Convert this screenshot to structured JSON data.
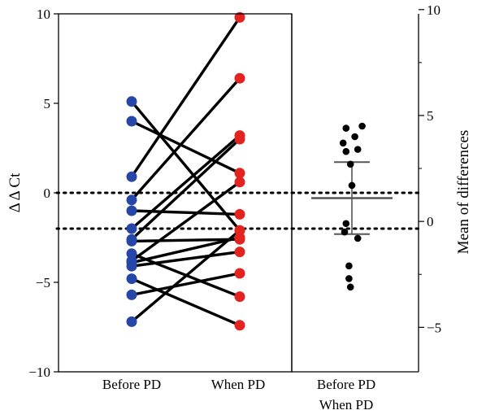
{
  "chart_data": [
    {
      "type": "line",
      "ylabel": "Δ Δ Ct",
      "ylim": [
        -10,
        10
      ],
      "yticks": [
        10,
        5,
        0,
        -5,
        -10
      ],
      "ytick_labels": [
        "10",
        "5",
        "0",
        "−5",
        "−10"
      ],
      "categories": [
        "Before PD",
        "When PD"
      ],
      "colors": {
        "Before PD": "#2747a8",
        "When PD": "#e3231f"
      },
      "reference_lines_y": [
        0,
        -2
      ],
      "pairs": [
        {
          "before": 5.1,
          "when": -2.1
        },
        {
          "before": 4.0,
          "when": 1.1
        },
        {
          "before": 0.9,
          "when": 9.8
        },
        {
          "before": -0.4,
          "when": 6.4
        },
        {
          "before": -1.0,
          "when": -1.2
        },
        {
          "before": -2.0,
          "when": 3.2
        },
        {
          "before": -2.6,
          "when": 3.0
        },
        {
          "before": -2.7,
          "when": -2.6
        },
        {
          "before": -3.4,
          "when": -5.8
        },
        {
          "before": -3.8,
          "when": 0.6
        },
        {
          "before": -3.9,
          "when": -2.5
        },
        {
          "before": -4.1,
          "when": -3.3
        },
        {
          "before": -4.8,
          "when": -7.4
        },
        {
          "before": -5.7,
          "when": -4.5
        },
        {
          "before": -7.2,
          "when": -2.1
        }
      ]
    },
    {
      "type": "scatter",
      "ylabel": "Mean of differences",
      "ylim": [
        -7.1,
        9.8
      ],
      "yticks": [
        10,
        5,
        0,
        -5
      ],
      "ytick_labels": [
        "10",
        "5",
        "0",
        "−5"
      ],
      "category": [
        "Before PD",
        "When PD"
      ],
      "mean": 1.1,
      "error_upper": 2.8,
      "error_lower": -0.6,
      "points": [
        {
          "x": -0.4,
          "y": 4.4
        },
        {
          "x": 0.7,
          "y": 4.5
        },
        {
          "x": 0.2,
          "y": 4.0
        },
        {
          "x": -0.6,
          "y": 3.7
        },
        {
          "x": -0.4,
          "y": 3.3
        },
        {
          "x": 0.4,
          "y": 3.4
        },
        {
          "x": -0.1,
          "y": 2.7
        },
        {
          "x": 0.0,
          "y": 1.7
        },
        {
          "x": -0.4,
          "y": -0.1
        },
        {
          "x": -0.5,
          "y": -0.5
        },
        {
          "x": 0.4,
          "y": -0.8
        },
        {
          "x": -0.2,
          "y": -2.1
        },
        {
          "x": -0.2,
          "y": -2.7
        },
        {
          "x": -0.1,
          "y": -3.1
        }
      ]
    }
  ]
}
